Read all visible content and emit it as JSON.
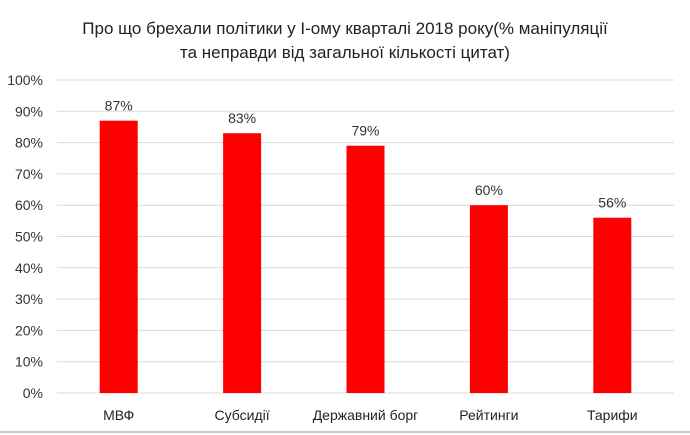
{
  "chart_data": {
    "type": "bar",
    "title_line1": "Про що брехали політики у І-ому кварталі 2018 року(% маніпуляції",
    "title_line2": "та неправди від загальної кількості цитат)",
    "categories": [
      "МВФ",
      "Субсидії",
      "Державний борг",
      "Рейтинги",
      "Тарифи"
    ],
    "values": [
      87,
      83,
      79,
      60,
      56
    ],
    "data_labels": [
      "87%",
      "83%",
      "79%",
      "60%",
      "56%"
    ],
    "xlabel": "",
    "ylabel": "",
    "ylim": [
      0,
      100
    ],
    "yticks": [
      "0%",
      "10%",
      "20%",
      "30%",
      "40%",
      "50%",
      "60%",
      "70%",
      "80%",
      "90%",
      "100%"
    ],
    "grid": true,
    "legend": "none",
    "bar_color": "#ff0000"
  }
}
